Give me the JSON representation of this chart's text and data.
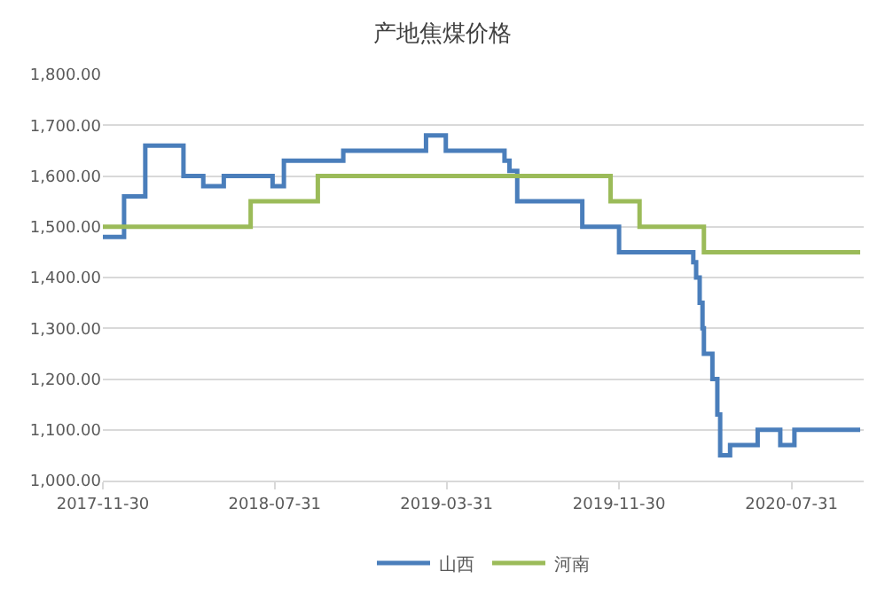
{
  "chart_data": {
    "type": "step",
    "title": "产地焦煤价格",
    "legend": "bottom",
    "grid": "y",
    "xlim": [
      "2017-11-30",
      "2020-11-10"
    ],
    "xticks": [
      {
        "value": "2017-11-30",
        "label": "2017-11-30"
      },
      {
        "value": "2018-07-31",
        "label": "2018-07-31"
      },
      {
        "value": "2019-03-31",
        "label": "2019-03-31"
      },
      {
        "value": "2019-11-30",
        "label": "2019-11-30"
      },
      {
        "value": "2020-07-31",
        "label": "2020-07-31"
      }
    ],
    "ylim": [
      1000,
      1800
    ],
    "yticks": [
      {
        "value": 1000,
        "label": "1,000.00"
      },
      {
        "value": 1100,
        "label": "1,100.00"
      },
      {
        "value": 1200,
        "label": "1,200.00"
      },
      {
        "value": 1300,
        "label": "1,300.00"
      },
      {
        "value": 1400,
        "label": "1,400.00"
      },
      {
        "value": 1500,
        "label": "1,500.00"
      },
      {
        "value": 1600,
        "label": "1,600.00"
      },
      {
        "value": 1700,
        "label": "1,700.00"
      },
      {
        "value": 1800,
        "label": "1,800.00"
      }
    ],
    "series": [
      {
        "name": "山西",
        "color": "#4a7ebb",
        "x": [
          "2017-11-30",
          "2017-12-30",
          "2018-01-29",
          "2018-03-24",
          "2018-04-21",
          "2018-05-20",
          "2018-07-28",
          "2018-08-13",
          "2018-11-05",
          "2019-03-02",
          "2019-03-30",
          "2019-06-21",
          "2019-06-28",
          "2019-07-09",
          "2019-10-09",
          "2019-11-30",
          "2020-03-14",
          "2020-03-18",
          "2020-03-23",
          "2020-03-27",
          "2020-03-29",
          "2020-04-10",
          "2020-04-17",
          "2020-04-21",
          "2020-05-05",
          "2020-06-13",
          "2020-07-15",
          "2020-08-04",
          "2020-10-25",
          "2020-11-05"
        ],
        "values": [
          1480,
          1560,
          1660,
          1600,
          1580,
          1600,
          1580,
          1630,
          1650,
          1680,
          1650,
          1630,
          1610,
          1550,
          1500,
          1450,
          1430,
          1400,
          1350,
          1300,
          1250,
          1200,
          1130,
          1050,
          1070,
          1100,
          1070,
          1100,
          1100,
          1100
        ]
      },
      {
        "name": "河南",
        "color": "#9bbb59",
        "x": [
          "2017-11-30",
          "2018-06-27",
          "2018-09-30",
          "2019-11-18",
          "2019-12-29",
          "2020-03-29",
          "2020-11-05"
        ],
        "values": [
          1500,
          1550,
          1600,
          1550,
          1500,
          1450,
          1450
        ]
      }
    ]
  }
}
